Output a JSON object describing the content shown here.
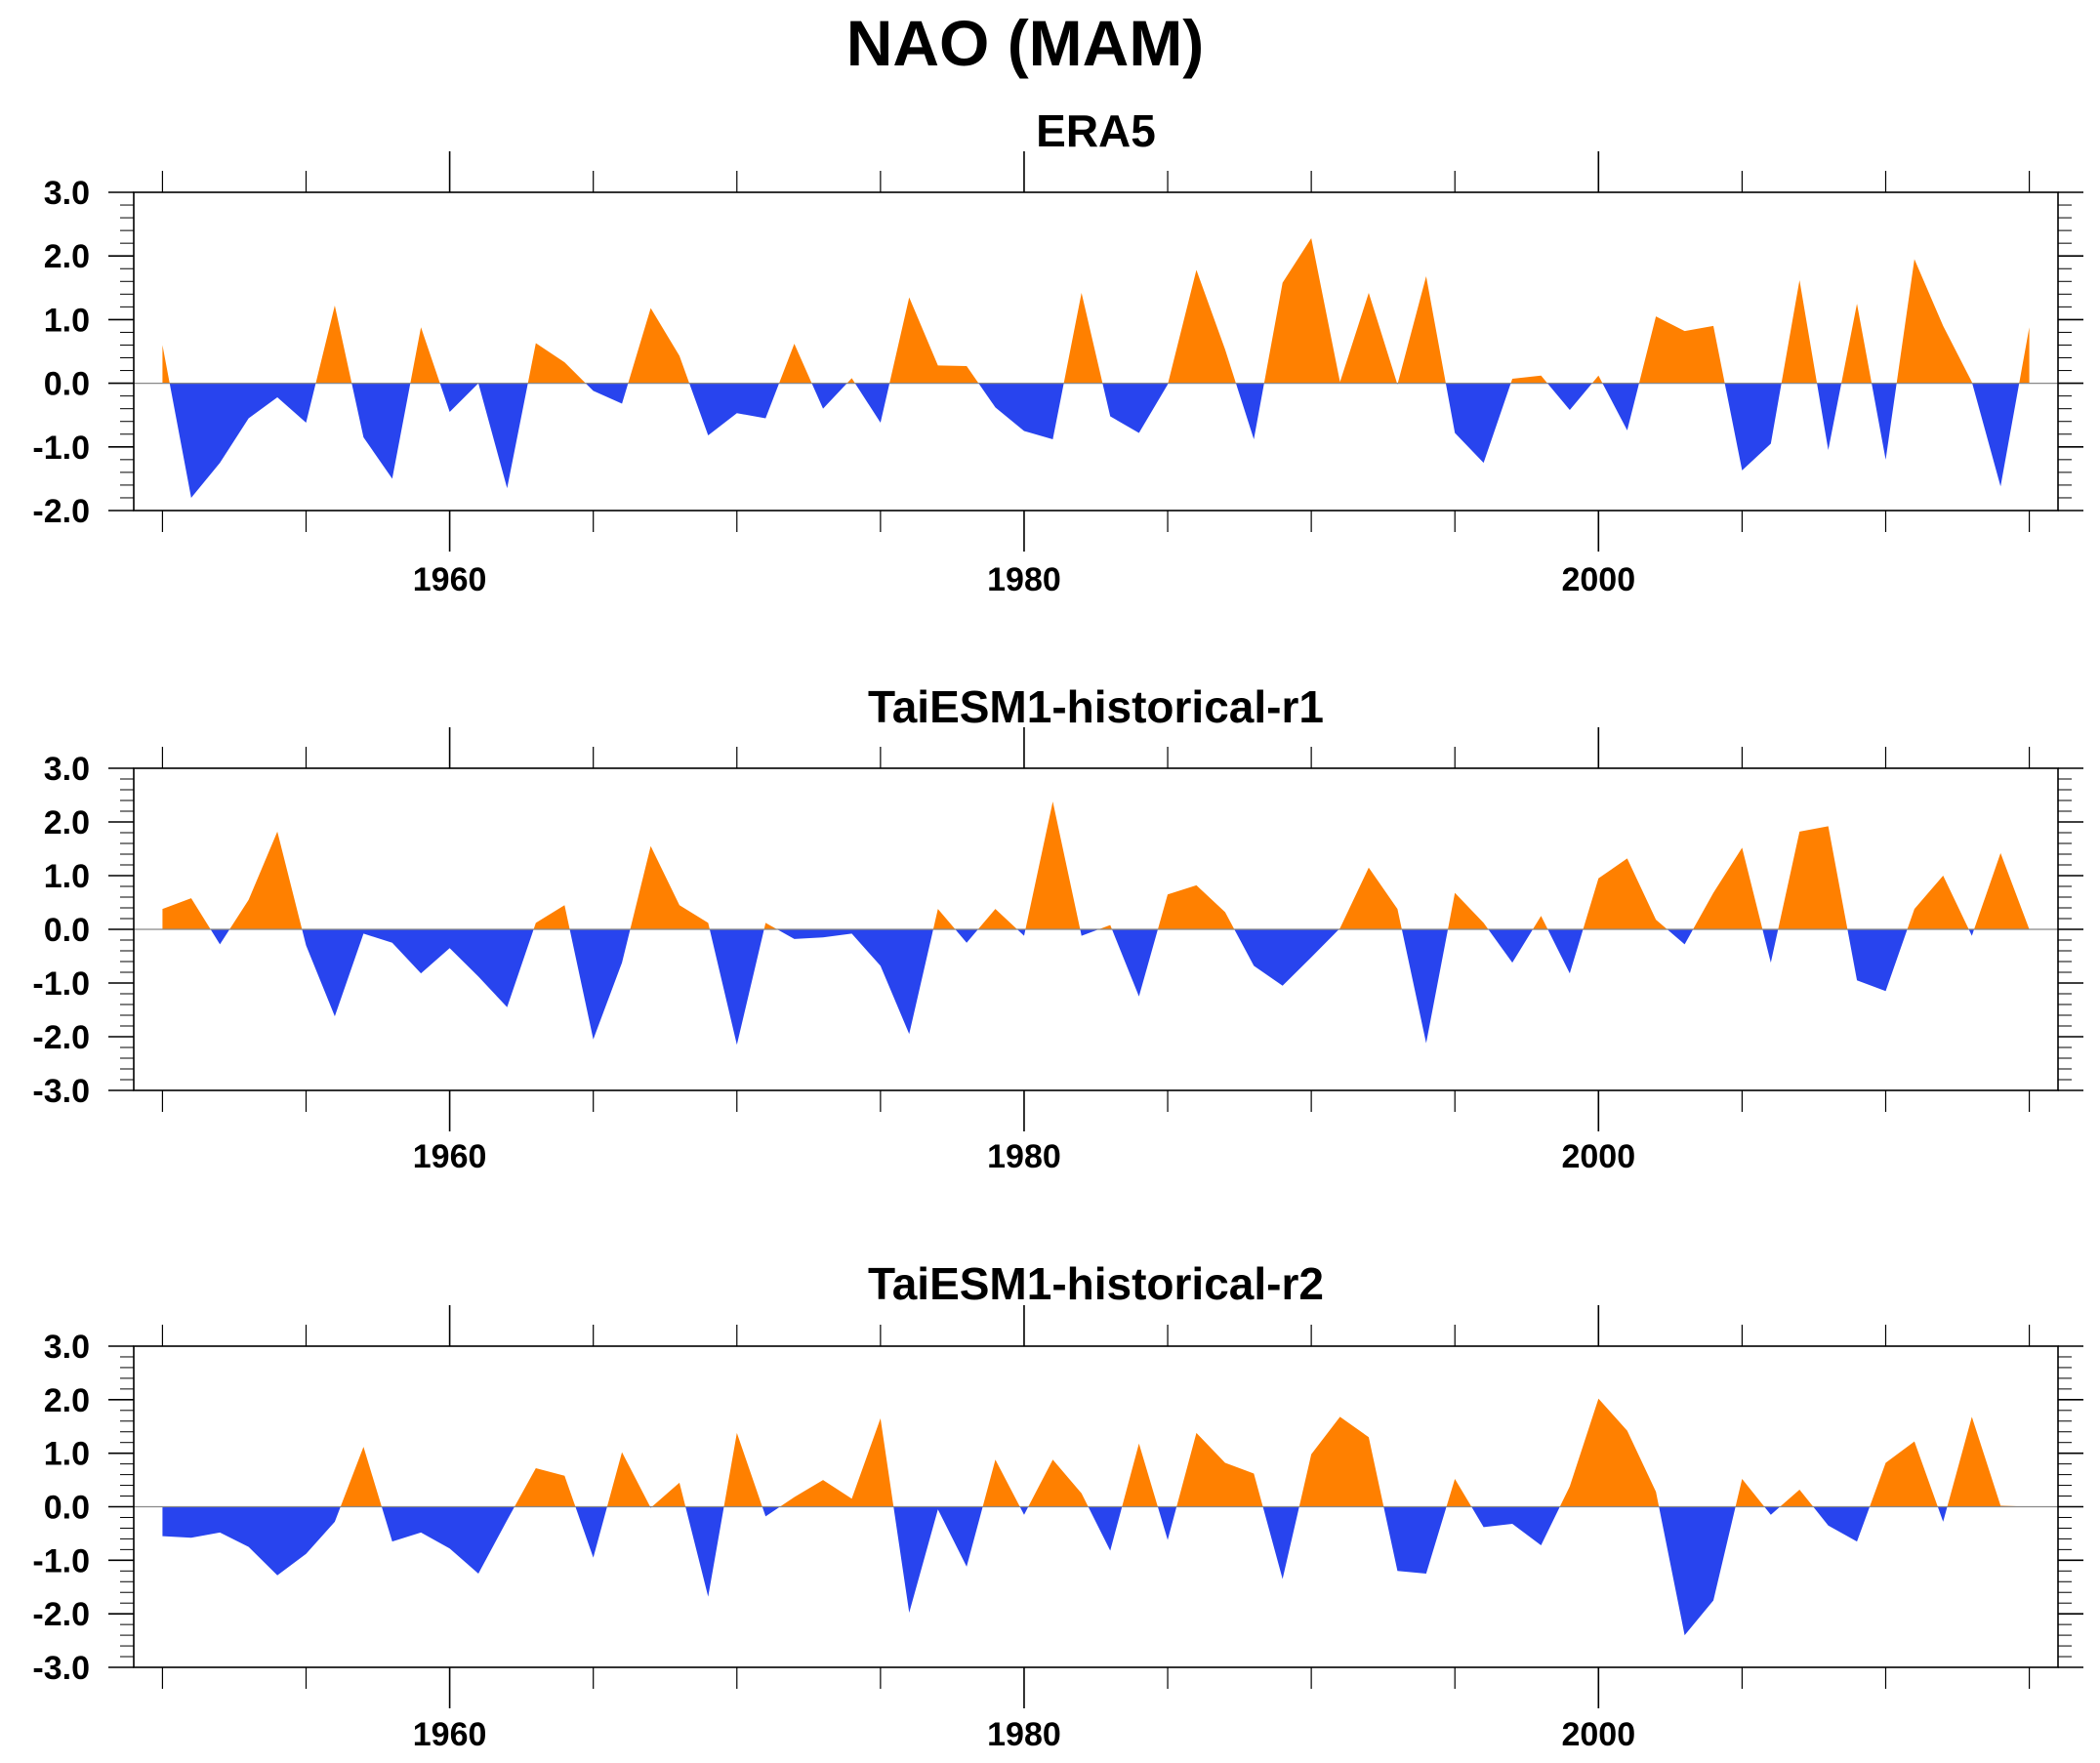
{
  "title": "NAO (MAM)",
  "colors": {
    "positive": "#ff8000",
    "negative": "#2844ee",
    "axis": "#000000"
  },
  "chart_data": [
    {
      "type": "area",
      "title": "ERA5",
      "xlim": [
        1949,
        2016
      ],
      "ylim": [
        -2.0,
        3.0
      ],
      "yticks": [
        "3.0",
        "2.0",
        "1.0",
        "0.0",
        "-1.0",
        "-2.0"
      ],
      "ytick_values": [
        3,
        2,
        1,
        0,
        -1,
        -2
      ],
      "xtick_labels": [
        "1960",
        "1980",
        "2000"
      ],
      "x": [
        1950,
        1951,
        1952,
        1953,
        1954,
        1955,
        1956,
        1957,
        1958,
        1959,
        1960,
        1961,
        1962,
        1963,
        1964,
        1965,
        1966,
        1967,
        1968,
        1969,
        1970,
        1971,
        1972,
        1973,
        1974,
        1975,
        1976,
        1977,
        1978,
        1979,
        1980,
        1981,
        1982,
        1983,
        1984,
        1985,
        1986,
        1987,
        1988,
        1989,
        1990,
        1991,
        1992,
        1993,
        1994,
        1995,
        1996,
        1997,
        1998,
        1999,
        2000,
        2001,
        2002,
        2003,
        2004,
        2005,
        2006,
        2007,
        2008,
        2009,
        2010,
        2011,
        2012,
        2013,
        2014,
        2015
      ],
      "values": [
        0.6,
        -1.8,
        -1.25,
        -0.55,
        -0.22,
        -0.62,
        1.22,
        -0.85,
        -1.5,
        0.88,
        -0.45,
        0.0,
        -1.65,
        0.63,
        0.33,
        -0.12,
        -0.32,
        1.18,
        0.43,
        -0.82,
        -0.47,
        -0.55,
        0.62,
        -0.4,
        0.08,
        -0.62,
        1.35,
        0.28,
        0.27,
        -0.38,
        -0.75,
        -0.88,
        1.42,
        -0.52,
        -0.78,
        -0.02,
        1.78,
        0.53,
        -0.88,
        1.58,
        2.28,
        0.02,
        1.42,
        -0.02,
        1.68,
        -0.78,
        -1.25,
        0.07,
        0.12,
        -0.42,
        0.12,
        -0.74,
        1.05,
        0.82,
        0.9,
        -1.37,
        -0.95,
        1.62,
        -1.05,
        1.25,
        -1.2,
        1.95,
        0.9,
        0.02,
        -1.62,
        0.88
      ]
    },
    {
      "type": "area",
      "title": "TaiESM1-historical-r1",
      "xlim": [
        1949,
        2016
      ],
      "ylim": [
        -3.0,
        3.0
      ],
      "yticks": [
        "3.0",
        "2.0",
        "1.0",
        "0.0",
        "-1.0",
        "-2.0",
        "-3.0"
      ],
      "ytick_values": [
        3,
        2,
        1,
        0,
        -1,
        -2,
        -3
      ],
      "xtick_labels": [
        "1960",
        "1980",
        "2000"
      ],
      "x": [
        1950,
        1951,
        1952,
        1953,
        1954,
        1955,
        1956,
        1957,
        1958,
        1959,
        1960,
        1961,
        1962,
        1963,
        1964,
        1965,
        1966,
        1967,
        1968,
        1969,
        1970,
        1971,
        1972,
        1973,
        1974,
        1975,
        1976,
        1977,
        1978,
        1979,
        1980,
        1981,
        1982,
        1983,
        1984,
        1985,
        1986,
        1987,
        1988,
        1989,
        1990,
        1991,
        1992,
        1993,
        1994,
        1995,
        1996,
        1997,
        1998,
        1999,
        2000,
        2001,
        2002,
        2003,
        2004,
        2005,
        2006,
        2007,
        2008,
        2009,
        2010,
        2011,
        2012,
        2013,
        2014,
        2015
      ],
      "values": [
        0.38,
        0.58,
        -0.28,
        0.55,
        1.82,
        -0.3,
        -1.62,
        -0.08,
        -0.25,
        -0.82,
        -0.35,
        -0.88,
        -1.45,
        0.12,
        0.45,
        -2.05,
        -0.62,
        1.55,
        0.45,
        0.12,
        -2.15,
        0.12,
        -0.18,
        -0.15,
        -0.08,
        -0.68,
        -1.95,
        0.38,
        -0.25,
        0.38,
        -0.12,
        2.38,
        -0.12,
        0.08,
        -1.25,
        0.65,
        0.82,
        0.32,
        -0.68,
        -1.05,
        -0.52,
        0.02,
        1.15,
        0.38,
        -2.12,
        0.68,
        0.12,
        -0.62,
        0.25,
        -0.82,
        0.95,
        1.32,
        0.18,
        -0.28,
        0.68,
        1.52,
        -0.62,
        1.82,
        1.92,
        -0.95,
        -1.15,
        0.38,
        1.0,
        -0.12,
        1.42,
        0.0
      ]
    },
    {
      "type": "area",
      "title": "TaiESM1-historical-r2",
      "xlim": [
        1949,
        2016
      ],
      "ylim": [
        -3.0,
        3.0
      ],
      "yticks": [
        "3.0",
        "2.0",
        "1.0",
        "0.0",
        "-1.0",
        "-2.0",
        "-3.0"
      ],
      "ytick_values": [
        3,
        2,
        1,
        0,
        -1,
        -2,
        -3
      ],
      "xtick_labels": [
        "1960",
        "1980",
        "2000"
      ],
      "x": [
        1950,
        1951,
        1952,
        1953,
        1954,
        1955,
        1956,
        1957,
        1958,
        1959,
        1960,
        1961,
        1962,
        1963,
        1964,
        1965,
        1966,
        1967,
        1968,
        1969,
        1970,
        1971,
        1972,
        1973,
        1974,
        1975,
        1976,
        1977,
        1978,
        1979,
        1980,
        1981,
        1982,
        1983,
        1984,
        1985,
        1986,
        1987,
        1988,
        1989,
        1990,
        1991,
        1992,
        1993,
        1994,
        1995,
        1996,
        1997,
        1998,
        1999,
        2000,
        2001,
        2002,
        2003,
        2004,
        2005,
        2006,
        2007,
        2008,
        2009,
        2010,
        2011,
        2012,
        2013,
        2014,
        2015
      ],
      "values": [
        -0.55,
        -0.58,
        -0.48,
        -0.75,
        -1.28,
        -0.88,
        -0.28,
        1.12,
        -0.65,
        -0.48,
        -0.78,
        -1.25,
        -0.25,
        0.72,
        0.58,
        -0.95,
        1.02,
        -0.02,
        0.45,
        -1.68,
        1.38,
        -0.18,
        0.18,
        0.5,
        0.15,
        1.65,
        -1.98,
        -0.05,
        -1.12,
        0.88,
        -0.15,
        0.88,
        0.25,
        -0.82,
        1.18,
        -0.62,
        1.38,
        0.82,
        0.62,
        -1.35,
        0.98,
        1.68,
        1.3,
        -1.2,
        -1.25,
        0.52,
        -0.38,
        -0.32,
        -0.72,
        0.38,
        2.02,
        1.42,
        0.28,
        -2.4,
        -1.75,
        0.52,
        -0.15,
        0.32,
        -0.35,
        -0.65,
        0.82,
        1.22,
        -0.28,
        1.68,
        0.02,
        0.0
      ]
    }
  ]
}
